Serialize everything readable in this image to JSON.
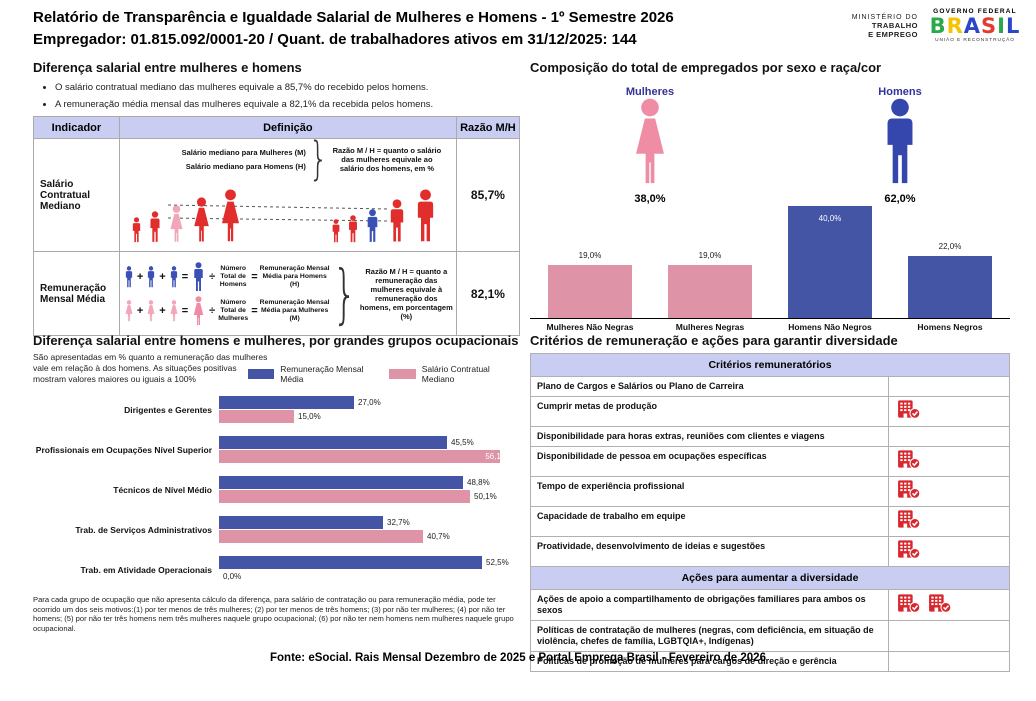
{
  "header": {
    "title_line1": "Relatório de Transparência e Igualdade Salarial de Mulheres e Homens - 1º Semestre 2026",
    "title_line2": "Empregador: 01.815.092/0001-20 / Quant. de trabalhadores ativos em 31/12/2025: 144",
    "ministry_logo": {
      "line1": "MINISTÉRIO DO",
      "line2": "TRABALHO",
      "line3": "E EMPREGO"
    },
    "gov_logo": {
      "top": "GOVERNO FEDERAL",
      "brand": "BRASIL",
      "bottom": "UNIÃO E RECONSTRUÇÃO",
      "brand_colors": [
        "#2ba84a",
        "#f5c400",
        "#2b46c8",
        "#e23b30",
        "#2ba84a",
        "#2b46c8"
      ]
    }
  },
  "salary_diff": {
    "title": "Diferença salarial entre mulheres e homens",
    "bullets": [
      "O salário contratual mediano das mulheres equivale a 85,7% do recebido pelos homens.",
      "A remuneração média mensal das mulheres equivale a 82,1% da recebida pelos homens."
    ],
    "brace": "}",
    "ops": {
      "plus": "+",
      "equals": "=",
      "divide": "÷"
    },
    "table": {
      "headers": [
        "Indicador",
        "Definição",
        "Razão M/H"
      ],
      "rows": [
        {
          "indicator": "Salário Contratual Mediano",
          "line_women": "Salário mediano para Mulheres (M)",
          "line_men": "Salário mediano para Homens (H)",
          "note": "Razão M / H = quanto o salário das mulheres equivale ao salário dos homens, em %",
          "ratio": "85,7%"
        },
        {
          "indicator": "Remuneração Mensal Média",
          "men_divisor": "Número Total de Homens",
          "men_result": "Remuneração Mensal Média para Homens (H)",
          "women_divisor": "Número Total de Mulheres",
          "women_result": "Remuneração Mensal Média para Mulheres (M)",
          "note": "Razão M / H = quanto a remuneração das mulheres equivale à remuneração dos homens, em porcentagem (%)",
          "ratio": "82,1%"
        }
      ]
    }
  },
  "composition": {
    "title": "Composição do total de empregados por sexo e raça/cor",
    "women_label": "Mulheres",
    "women_pct": "38,0%",
    "men_label": "Homens",
    "men_pct": "62,0%"
  },
  "occupation": {
    "title": "Diferença salarial entre homens e mulheres, por grandes grupos ocupacionais",
    "subtitle": "São apresentadas em % quanto a remuneração das mulheres vale em relação à dos homens. As situações positivas mostram valores maiores ou iguais a 100%",
    "footnote": "Para cada grupo de ocupação que não apresenta cálculo da diferença, para salário de contratação ou para remuneração média, pode ter ocorrido um dos seis motivos:(1) por ter menos de três mulheres; (2) por ter menos de três homens; (3) por não ter mulheres; (4) por não ter homens; (5) por não ter três homens nem três mulheres naquele grupo ocupacional; (6) por não ter nem homens nem mulheres naquele grupo ocupacional."
  },
  "criteria": {
    "title": "Critérios de remuneração e ações para garantir diversidade",
    "sections": [
      {
        "header": "Critérios remuneratórios",
        "rows": [
          {
            "label": "Plano de Cargos e Salários ou Plano de Carreira",
            "icons": 0
          },
          {
            "label": "Cumprir metas de produção",
            "icons": 1
          },
          {
            "label": "Disponibilidade para horas extras, reuniões com clientes e viagens",
            "icons": 0
          },
          {
            "label": "Disponibilidade de pessoa em ocupações específicas",
            "icons": 1
          },
          {
            "label": "Tempo de experiência profissional",
            "icons": 1
          },
          {
            "label": "Capacidade de trabalho em equipe",
            "icons": 1
          },
          {
            "label": "Proatividade, desenvolvimento de ideias e sugestões",
            "icons": 1
          }
        ]
      },
      {
        "header": "Ações para aumentar a diversidade",
        "rows": [
          {
            "label": "Ações de apoio a compartilhamento de obrigações familiares para ambos os sexos",
            "icons": 2
          },
          {
            "label": "Políticas de contratação de mulheres (negras, com deficiência, em situação de violência, chefes de família, LGBTQIA+, Indígenas)",
            "icons": 0
          },
          {
            "label": "Políticas de promoção de mulheres para cargos de direção e gerência",
            "icons": 0
          }
        ]
      }
    ]
  },
  "footer": "Fonte: eSocial. Rais Mensal Dezembro de 2025 e Portal Emprega Brasil - Fevereiro de 2026",
  "chart_data": [
    {
      "id": "composition-by-sex-race",
      "type": "bar",
      "title": "Composição do total de empregados por sexo e raça/cor",
      "categories": [
        "Mulheres Não Negras",
        "Mulheres Negras",
        "Homens Não Negros",
        "Homens Negros"
      ],
      "values": [
        19.0,
        19.0,
        40.0,
        22.0
      ],
      "value_labels": [
        "19,0%",
        "19,0%",
        "40,0%",
        "22,0%"
      ],
      "colors": [
        "#de93a6",
        "#de93a6",
        "#4355a4",
        "#4355a4"
      ],
      "ylim": [
        0,
        45
      ],
      "grid": false,
      "annotations": {
        "women_total": "38,0%",
        "men_total": "62,0%"
      }
    },
    {
      "id": "salary-gap-by-occupation",
      "type": "bar-horizontal",
      "title": "Diferença salarial entre homens e mulheres, por grandes grupos ocupacionais",
      "categories": [
        "Dirigentes e Gerentes",
        "Profissionais em Ocupações Nível Superior",
        "Técnicos de Nível Médio",
        "Trab. de Serviços Administrativos",
        "Trab. em Atividade Operacionais"
      ],
      "series": [
        {
          "name": "Remuneração Mensal Média",
          "color": "#4355a4",
          "values": [
            27.0,
            45.5,
            48.8,
            32.7,
            52.5
          ],
          "labels": [
            "27,0%",
            "45,5%",
            "48,8%",
            "32,7%",
            "52,5%"
          ]
        },
        {
          "name": "Salário Contratual Mediano",
          "color": "#de93a6",
          "values": [
            15.0,
            56.1,
            50.1,
            40.7,
            0.0
          ],
          "labels": [
            "15,0%",
            "56,1%",
            "50,1%",
            "40,7%",
            "0,0%"
          ]
        }
      ],
      "xlim": [
        0,
        60
      ],
      "grid": false,
      "legend_position": "top"
    }
  ]
}
